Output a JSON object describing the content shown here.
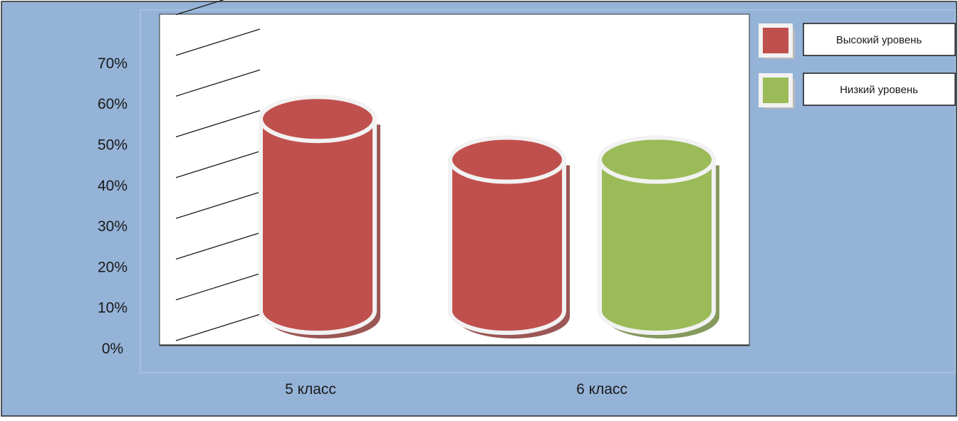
{
  "chart_data": {
    "type": "bar",
    "categories": [
      "5 класс",
      "6 класс"
    ],
    "series": [
      {
        "name": "Высокий уровень",
        "values": [
          60,
          50
        ],
        "color": "#C0504D"
      },
      {
        "name": "Низкий уровень",
        "values": [
          null,
          50
        ],
        "color": "#9BBB59"
      }
    ],
    "y_ticks": [
      "0%",
      "10%",
      "20%",
      "30%",
      "40%",
      "50%",
      "60%",
      "70%"
    ],
    "ylim": [
      0,
      70
    ],
    "title": "",
    "xlabel": "",
    "ylabel": "",
    "legend_position": "top-right",
    "grid": false,
    "style": "3d-cylinder"
  },
  "colors": {
    "background": "#95B3D7",
    "plot_area": "#FFFFFF",
    "rim": "#F2F2F2"
  }
}
